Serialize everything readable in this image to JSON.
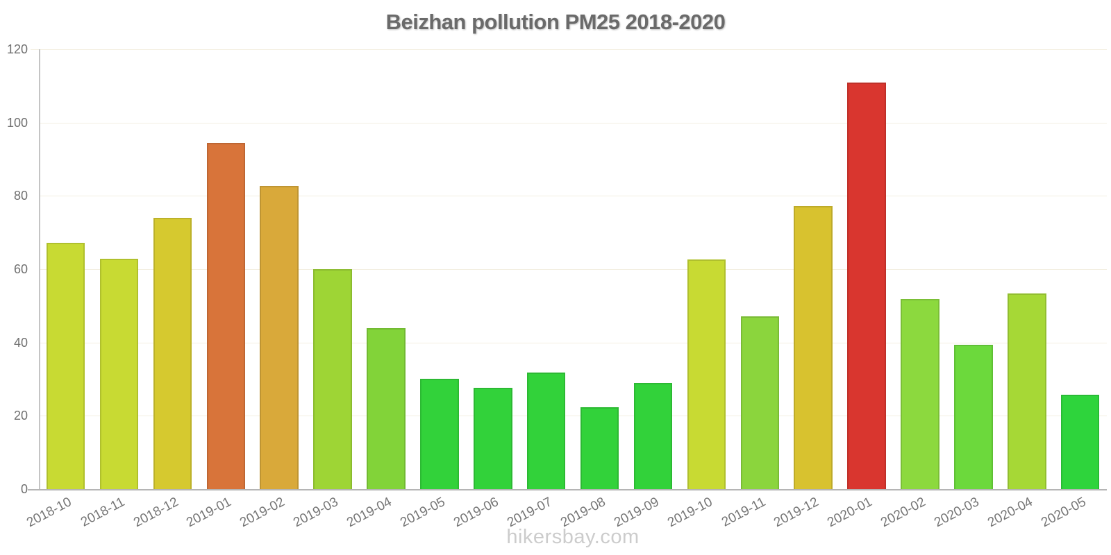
{
  "page": {
    "title": "Beizhan pollution PM25 2018-2020",
    "watermark": "hikersbay.com"
  },
  "chart_data": {
    "type": "bar",
    "title": "Beizhan pollution PM25 2018-2020",
    "xlabel": "",
    "ylabel": "",
    "ylim": [
      0,
      120
    ],
    "yticks": [
      0,
      20,
      40,
      60,
      80,
      100,
      120
    ],
    "grid": true,
    "legend": false,
    "watermark": "hikersbay.com",
    "categories": [
      "2018-10",
      "2018-11",
      "2018-12",
      "2019-01",
      "2019-02",
      "2019-03",
      "2019-04",
      "2019-05",
      "2019-06",
      "2019-07",
      "2019-08",
      "2019-09",
      "2019-10",
      "2019-11",
      "2019-12",
      "2020-01",
      "2020-02",
      "2020-03",
      "2020-04",
      "2020-05"
    ],
    "series": [
      {
        "name": "PM25",
        "values": [
          67.3,
          62.8,
          74.1,
          94.5,
          82.8,
          60.1,
          43.9,
          30.1,
          27.6,
          31.8,
          22.3,
          29.0,
          62.6,
          47.2,
          77.3,
          111.0,
          51.8,
          39.4,
          53.4,
          25.7
        ]
      }
    ],
    "bar_colors": [
      "#c8da33",
      "#c8da33",
      "#d6c92f",
      "#d8743a",
      "#d9a93a",
      "#9ed535",
      "#82d339",
      "#32d23a",
      "#32d23a",
      "#32d23a",
      "#32d23a",
      "#32d23a",
      "#c8da33",
      "#8bd53d",
      "#d8c22f",
      "#d9362f",
      "#8cd93e",
      "#6cd93c",
      "#a6d836",
      "#2ed43c"
    ]
  }
}
